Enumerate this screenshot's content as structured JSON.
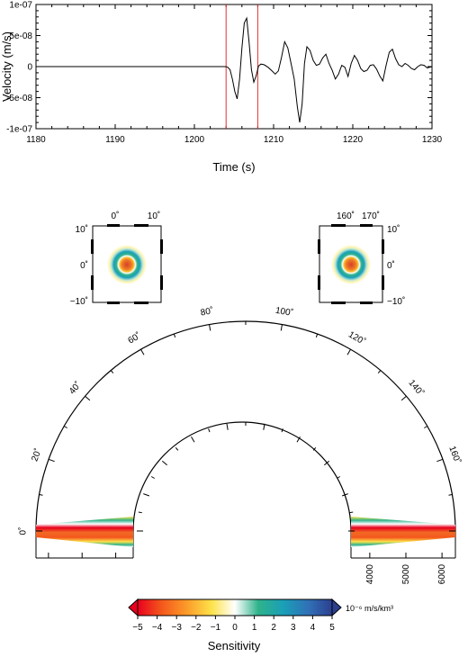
{
  "chart_data": [
    {
      "type": "line",
      "xlabel": "Time (s)",
      "ylabel": "Velocity (m/s)",
      "xlim": [
        1180,
        1230
      ],
      "ylim": [
        -1e-07,
        1e-07
      ],
      "xticks": [
        1180,
        1190,
        1200,
        1210,
        1220,
        1230
      ],
      "xtick_labels": [
        "1180",
        "1190",
        "1200",
        "1210",
        "1220",
        "1230"
      ],
      "yticks": [
        1e-07,
        5e-08,
        0,
        -5e-08,
        -1e-07
      ],
      "ytick_labels": [
        "1e-07",
        "5e-08",
        "0",
        "-5e-08",
        "-1e-07"
      ],
      "window_markers": [
        1204,
        1208
      ],
      "window_color": "#e03030",
      "series": [
        {
          "x": [
            1180,
            1203.9,
            1204.2,
            1204.5,
            1204.8,
            1205.1,
            1205.4,
            1205.7,
            1206,
            1206.3,
            1206.6,
            1206.9,
            1207.2,
            1207.5,
            1207.8,
            1208.1,
            1208.4,
            1208.8,
            1209.3,
            1209.8,
            1210.2,
            1210.6,
            1211,
            1211.4,
            1211.8,
            1212.2,
            1212.6,
            1213,
            1213.3,
            1213.6,
            1213.9,
            1214.2,
            1214.6,
            1215,
            1215.4,
            1215.8,
            1216.2,
            1216.6,
            1217,
            1217.4,
            1217.8,
            1218.2,
            1218.6,
            1219,
            1219.4,
            1219.8,
            1220.2,
            1220.6,
            1221,
            1221.4,
            1221.8,
            1222.2,
            1222.6,
            1223,
            1223.4,
            1223.8,
            1224.2,
            1224.6,
            1225,
            1225.4,
            1225.8,
            1226.2,
            1226.6,
            1227,
            1227.4,
            1227.8,
            1228.2,
            1228.6,
            1229,
            1229.4,
            1230
          ],
          "y": [
            0,
            0,
            -1e-09,
            -5e-09,
            -2e-08,
            -4e-08,
            -5.2e-08,
            -2e-08,
            3e-08,
            7e-08,
            7.8e-08,
            4e-08,
            -5e-09,
            -2.5e-08,
            -1.5e-08,
            1e-09,
            4e-09,
            3e-09,
            -1e-09,
            -7e-09,
            -1.2e-08,
            -7e-09,
            1.5e-08,
            4e-08,
            3e-08,
            5e-09,
            -2e-08,
            -6.5e-08,
            -9e-08,
            -6e-08,
            5e-09,
            3.2e-08,
            2.6e-08,
            1e-08,
            2e-09,
            4e-09,
            1.4e-08,
            2e-08,
            5e-09,
            -6e-09,
            -2e-08,
            -1.2e-08,
            2e-09,
            -1e-09,
            -1.6e-08,
            5e-09,
            1.8e-08,
            1e-08,
            -3e-09,
            -8e-09,
            -6e-09,
            2e-09,
            3e-09,
            -4e-09,
            -1.5e-08,
            -2.3e-08,
            2e-09,
            2.3e-08,
            2.8e-08,
            1.3e-08,
            3e-09,
            0,
            5e-09,
            2e-09,
            -3e-09,
            -5e-09,
            0,
            3e-09,
            2e-09,
            -2e-09,
            0
          ]
        }
      ]
    },
    {
      "type": "heatmap",
      "panel": "source map",
      "xtick_labels": [
        "0˚",
        "10˚"
      ],
      "ytick_labels": [
        "10˚",
        "0˚",
        "−10˚"
      ]
    },
    {
      "type": "heatmap",
      "panel": "receiver map",
      "xtick_labels": [
        "160˚",
        "170˚"
      ],
      "ytick_labels": [
        "10˚",
        "0˚",
        "−10˚"
      ]
    },
    {
      "type": "heatmap",
      "panel": "great-circle cross-section",
      "angle_ticks": [
        0,
        20,
        40,
        60,
        80,
        100,
        120,
        140,
        160
      ],
      "angle_tick_labels": [
        "0˚",
        "20˚",
        "40˚",
        "60˚",
        "80˚",
        "100˚",
        "120˚",
        "140˚",
        "160˚"
      ],
      "radius_ticks": [
        4000,
        5000,
        6000
      ],
      "radius_tick_labels": [
        "4000",
        "5000",
        "6000"
      ],
      "angular_range": [
        0,
        180
      ],
      "radial_range": [
        3480,
        6371
      ]
    }
  ],
  "colorbar": {
    "min": -5,
    "max": 5,
    "ticks": [
      "−5",
      "−4",
      "−3",
      "−2",
      "−1",
      "0",
      "1",
      "2",
      "3",
      "4",
      "5"
    ],
    "unit": "10⁻⁶ m/s/km³",
    "label": "Sensitivity",
    "colors": [
      "#e8001e",
      "#f4561c",
      "#fb9a29",
      "#fde24a",
      "#ffffff",
      "#2fb38a",
      "#1a9fb8",
      "#3070b6",
      "#2c3f8f"
    ]
  }
}
